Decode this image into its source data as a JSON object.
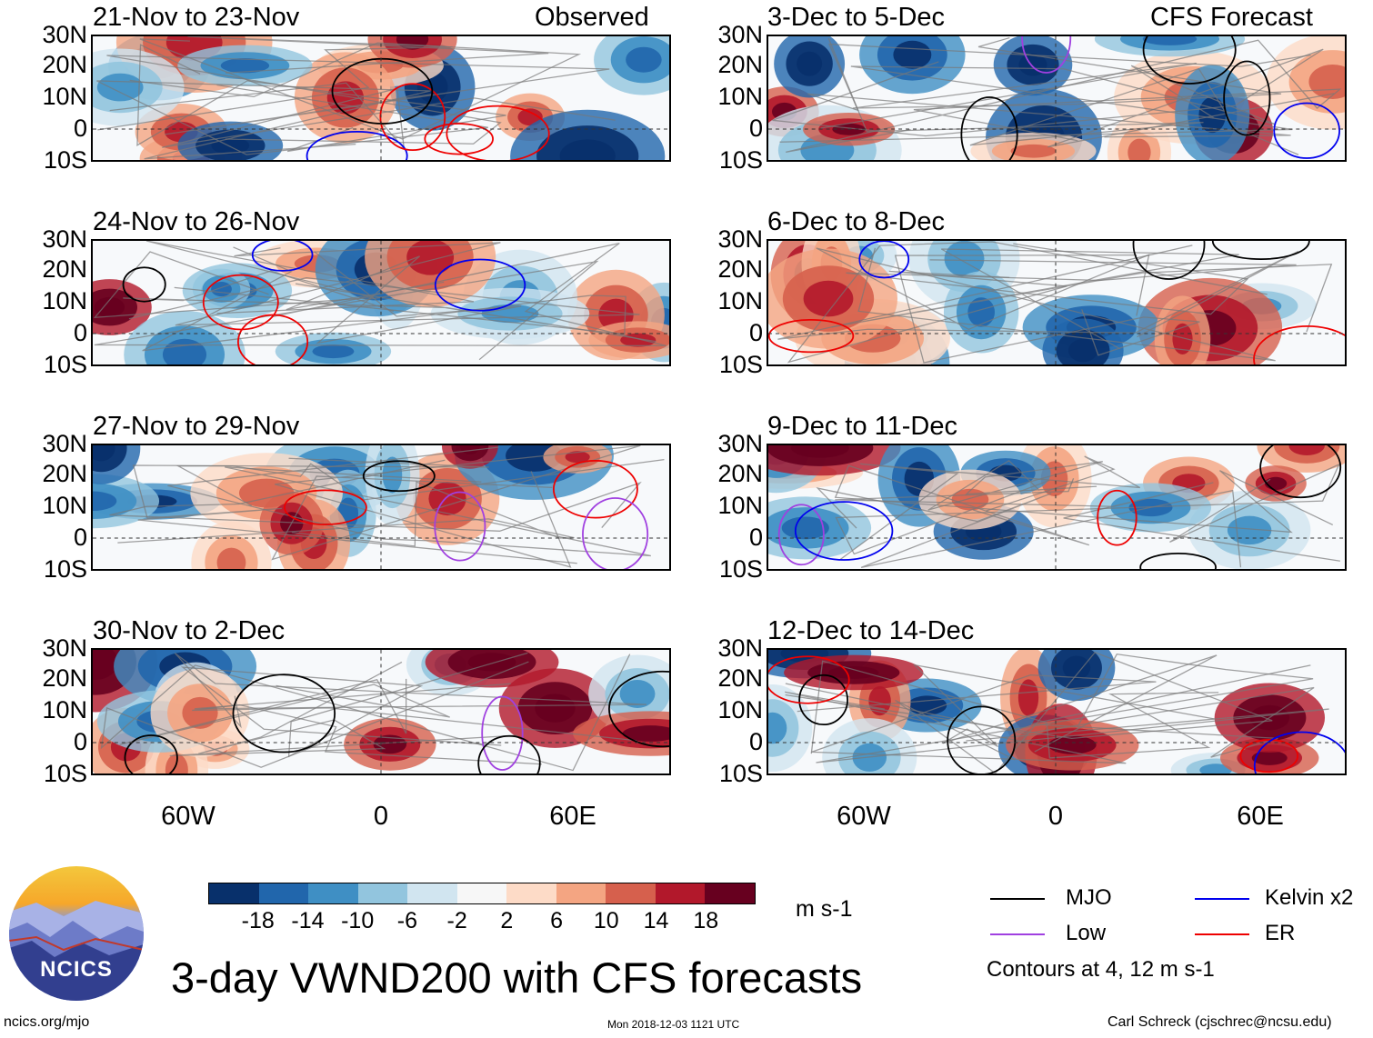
{
  "title": "3-day VWND200 with CFS forecasts",
  "observed_label": "Observed",
  "forecast_label": "CFS Forecast",
  "panels": [
    {
      "period": "21-Nov to 23-Nov"
    },
    {
      "period": "24-Nov to 26-Nov"
    },
    {
      "period": "27-Nov to 29-Nov"
    },
    {
      "period": "30-Nov to 2-Dec"
    },
    {
      "period": "3-Dec to 5-Dec"
    },
    {
      "period": "6-Dec to 8-Dec"
    },
    {
      "period": "9-Dec to 11-Dec"
    },
    {
      "period": "12-Dec to 14-Dec"
    }
  ],
  "lat_labels": [
    "30N",
    "20N",
    "10N",
    "0",
    "10S"
  ],
  "lon_labels": [
    "60W",
    "0",
    "60E"
  ],
  "colorbar": {
    "ticks": [
      "-18",
      "-14",
      "-10",
      "-6",
      "-2",
      "2",
      "6",
      "10",
      "14",
      "18"
    ],
    "colors": [
      "#08306b",
      "#2166ac",
      "#3f8fc4",
      "#92c5de",
      "#d1e5f0",
      "#f7f7f7",
      "#fddbc7",
      "#f4a582",
      "#d6604d",
      "#b2182b",
      "#67001f"
    ],
    "units": "m s-1"
  },
  "legend": {
    "items": [
      {
        "label": "MJO",
        "color": "#000000"
      },
      {
        "label": "Kelvin x2",
        "color": "#0000ee"
      },
      {
        "label": "Low",
        "color": "#a040e0"
      },
      {
        "label": "ER",
        "color": "#ee0000"
      }
    ],
    "contour_note": "Contours at 4, 12 m s-1"
  },
  "logo_text": "NCICS",
  "url": "ncics.org/mjo",
  "timestamp": "Mon 2018-12-03 1121 UTC",
  "credit": "Carl Schreck (cjschrec@ncsu.edu)"
}
